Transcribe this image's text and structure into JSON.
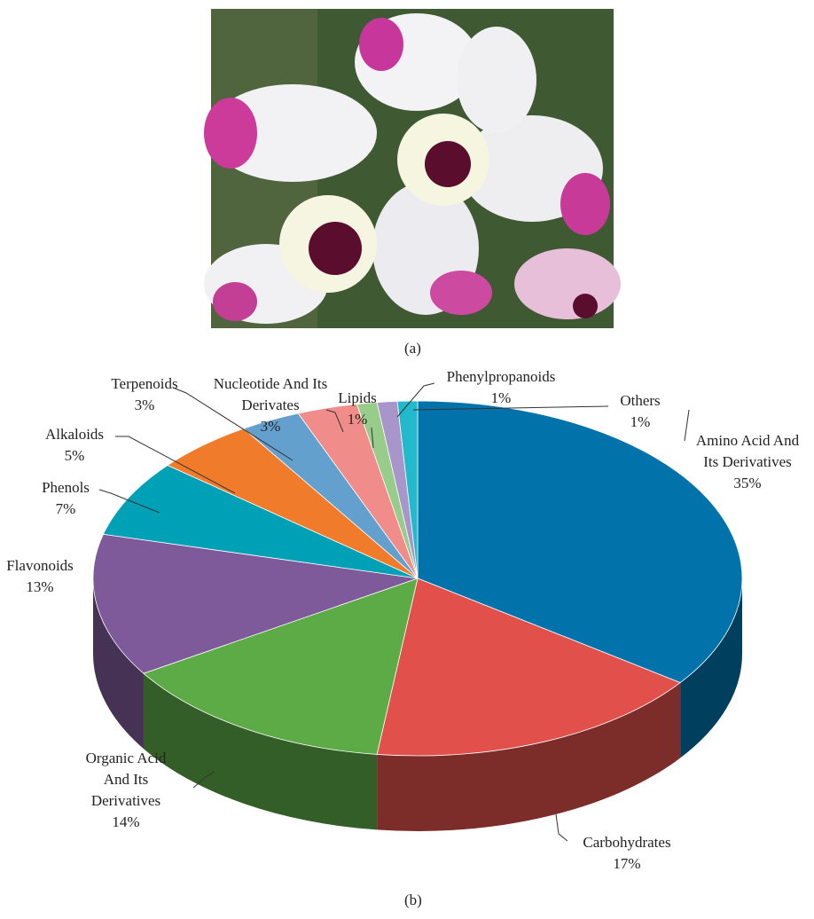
{
  "image": {
    "caption": "(a)"
  },
  "chart_data": {
    "type": "pie3d",
    "caption": "(b)",
    "categories": [
      "Amino Acid And Its Derivatives",
      "Carbohydrates",
      "Organic Acid And Its Derivatives",
      "Flavonoids",
      "Phenols",
      "Alkaloids",
      "Terpenoids",
      "Nucleotide And Its Derivates",
      "Lipids",
      "Phenylpropanoids",
      "Others"
    ],
    "values": [
      35,
      17,
      14,
      13,
      7,
      5,
      3,
      3,
      1,
      1,
      1
    ],
    "value_labels": [
      "35%",
      "17%",
      "14%",
      "13%",
      "7%",
      "5%",
      "3%",
      "3%",
      "1%",
      "1%",
      "1%"
    ],
    "colors": [
      "#0272ab",
      "#e1504b",
      "#5cab47",
      "#7f5a9a",
      "#00a1b6",
      "#f07c2b",
      "#64a0cd",
      "#f08d8b",
      "#97cc8a",
      "#a895c9",
      "#22b9cc"
    ]
  }
}
